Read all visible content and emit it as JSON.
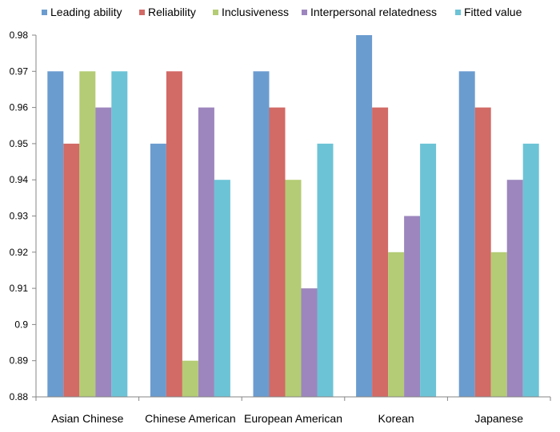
{
  "chart_data": {
    "type": "bar",
    "title": "",
    "xlabel": "",
    "ylabel": "",
    "categories": [
      "Asian Chinese",
      "Chinese American",
      "European American",
      "Korean",
      "Japanese"
    ],
    "ylim": [
      0.88,
      0.98
    ],
    "y_ticks": [
      "0.88",
      "0.89",
      "0.9",
      "0.91",
      "0.92",
      "0.93",
      "0.94",
      "0.95",
      "0.96",
      "0.97",
      "0.98"
    ],
    "grid": false,
    "legend_position": "top",
    "series": [
      {
        "name": "Leading ability",
        "color": "#6b9ccf",
        "values": [
          0.97,
          0.95,
          0.97,
          0.98,
          0.97
        ]
      },
      {
        "name": "Reliability",
        "color": "#d26a66",
        "values": [
          0.95,
          0.97,
          0.96,
          0.96,
          0.96
        ]
      },
      {
        "name": "Inclusiveness",
        "color": "#b4cc75",
        "values": [
          0.97,
          0.89,
          0.94,
          0.92,
          0.92
        ]
      },
      {
        "name": "Interpersonal  relatedness",
        "color": "#9d86bd",
        "values": [
          0.96,
          0.96,
          0.91,
          0.93,
          0.94
        ]
      },
      {
        "name": "Fitted value",
        "color": "#6cc3d6",
        "values": [
          0.97,
          0.94,
          0.95,
          0.95,
          0.95
        ]
      }
    ]
  }
}
